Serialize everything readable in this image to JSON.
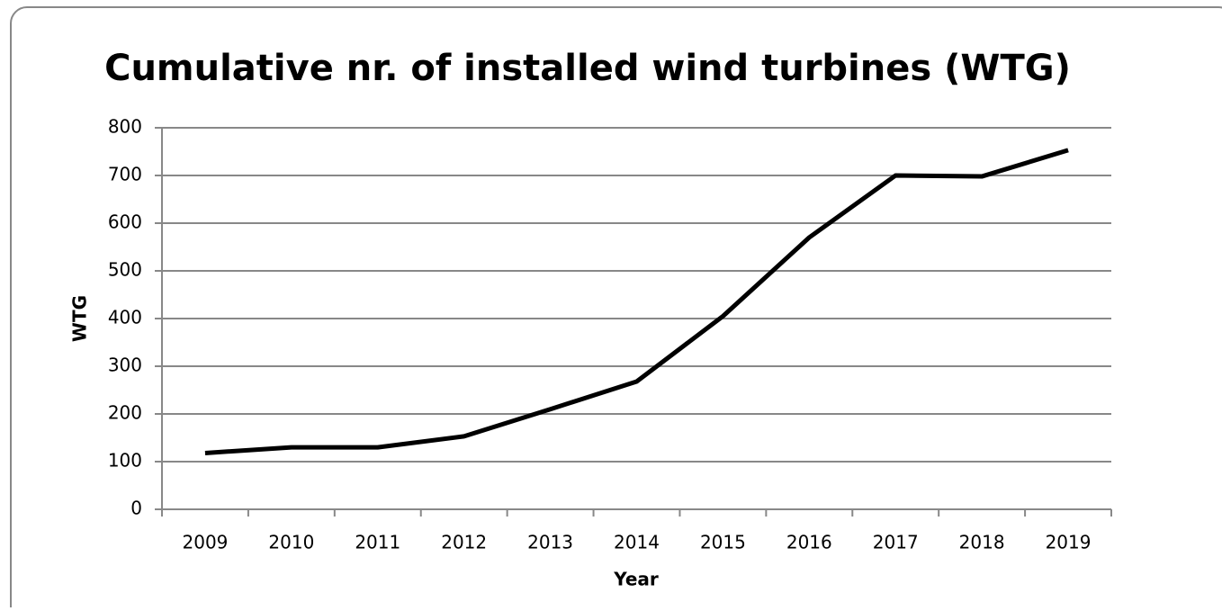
{
  "chart_data": {
    "type": "line",
    "title": "Cumulative nr. of installed wind turbines (WTG)",
    "x_label": "Year",
    "y_label": "WTG",
    "categories": [
      "2009",
      "2010",
      "2011",
      "2012",
      "2013",
      "2014",
      "2015",
      "2016",
      "2017",
      "2018",
      "2019"
    ],
    "values": [
      118,
      130,
      130,
      153,
      210,
      268,
      405,
      570,
      700,
      698,
      753
    ],
    "color": "#000000",
    "ylim": [
      0,
      800
    ],
    "yticks": [
      0,
      100,
      200,
      300,
      400,
      500,
      600,
      700,
      800
    ],
    "grid": true
  }
}
